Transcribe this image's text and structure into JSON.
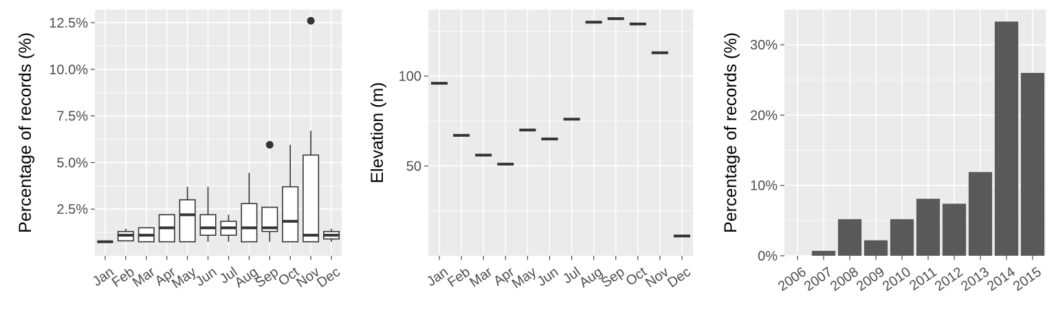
{
  "chart_data": [
    {
      "type": "box",
      "title": "",
      "xlabel": "",
      "ylabel": "Percentage of records (%)",
      "ylim": [
        0,
        13.2
      ],
      "yticks": [
        2.5,
        5.0,
        7.5,
        10.0,
        12.5
      ],
      "yticklabels": [
        "2.5%",
        "5.0%",
        "7.5%",
        "10.0%",
        "12.5%"
      ],
      "categories": [
        "Jan",
        "Feb",
        "Mar",
        "Apr",
        "May",
        "Jun",
        "Jul",
        "Aug",
        "Sep",
        "Oct",
        "Nov",
        "Dec"
      ],
      "boxes": [
        {
          "min": 0.75,
          "q1": 0.75,
          "median": 0.75,
          "q3": 0.75,
          "max": 0.75,
          "outliers": []
        },
        {
          "min": 0.8,
          "q1": 0.8,
          "median": 1.1,
          "q3": 1.3,
          "max": 1.45,
          "outliers": []
        },
        {
          "min": 0.75,
          "q1": 0.75,
          "median": 1.1,
          "q3": 1.5,
          "max": 1.5,
          "outliers": []
        },
        {
          "min": 0.75,
          "q1": 0.75,
          "median": 1.5,
          "q3": 2.2,
          "max": 2.2,
          "outliers": []
        },
        {
          "min": 0.75,
          "q1": 0.75,
          "median": 2.2,
          "q3": 3.0,
          "max": 3.7,
          "outliers": []
        },
        {
          "min": 0.75,
          "q1": 1.1,
          "median": 1.5,
          "q3": 2.2,
          "max": 3.7,
          "outliers": []
        },
        {
          "min": 0.75,
          "q1": 1.1,
          "median": 1.5,
          "q3": 1.85,
          "max": 2.2,
          "outliers": []
        },
        {
          "min": 0.75,
          "q1": 0.75,
          "median": 1.5,
          "q3": 2.8,
          "max": 4.45,
          "outliers": []
        },
        {
          "min": 0.75,
          "q1": 1.3,
          "median": 1.5,
          "q3": 2.6,
          "max": 2.6,
          "outliers": [
            5.95
          ]
        },
        {
          "min": 0.75,
          "q1": 0.75,
          "median": 1.85,
          "q3": 3.7,
          "max": 5.95,
          "outliers": []
        },
        {
          "min": 0.75,
          "q1": 0.75,
          "median": 1.1,
          "q3": 5.4,
          "max": 6.7,
          "outliers": [
            12.6
          ]
        },
        {
          "min": 0.75,
          "q1": 0.9,
          "median": 1.1,
          "q3": 1.3,
          "max": 1.45,
          "outliers": []
        }
      ]
    },
    {
      "type": "crossbar",
      "title": "",
      "xlabel": "",
      "ylabel": "Elevation (m)",
      "ylim": [
        0,
        137
      ],
      "yticks": [
        50,
        100
      ],
      "yticklabels": [
        "50",
        "100"
      ],
      "categories": [
        "Jan",
        "Feb",
        "Mar",
        "Apr",
        "May",
        "Jun",
        "Jul",
        "Aug",
        "Sep",
        "Oct",
        "Nov",
        "Dec"
      ],
      "values": [
        96,
        67,
        56,
        51,
        70,
        65,
        76,
        130,
        132,
        129,
        113,
        11
      ]
    },
    {
      "type": "bar",
      "title": "",
      "xlabel": "",
      "ylabel": "Percentage of records (%)",
      "ylim": [
        0,
        35
      ],
      "yticks": [
        0,
        10,
        20,
        30
      ],
      "yticklabels": [
        "0%",
        "10%",
        "20%",
        "30%"
      ],
      "categories": [
        "2006",
        "2007",
        "2008",
        "2009",
        "2010",
        "2011",
        "2012",
        "2013",
        "2014",
        "2015"
      ],
      "values": [
        0,
        0.7,
        5.2,
        2.2,
        5.2,
        8.1,
        7.4,
        11.9,
        33.3,
        26.0
      ],
      "color": "#595959"
    }
  ]
}
